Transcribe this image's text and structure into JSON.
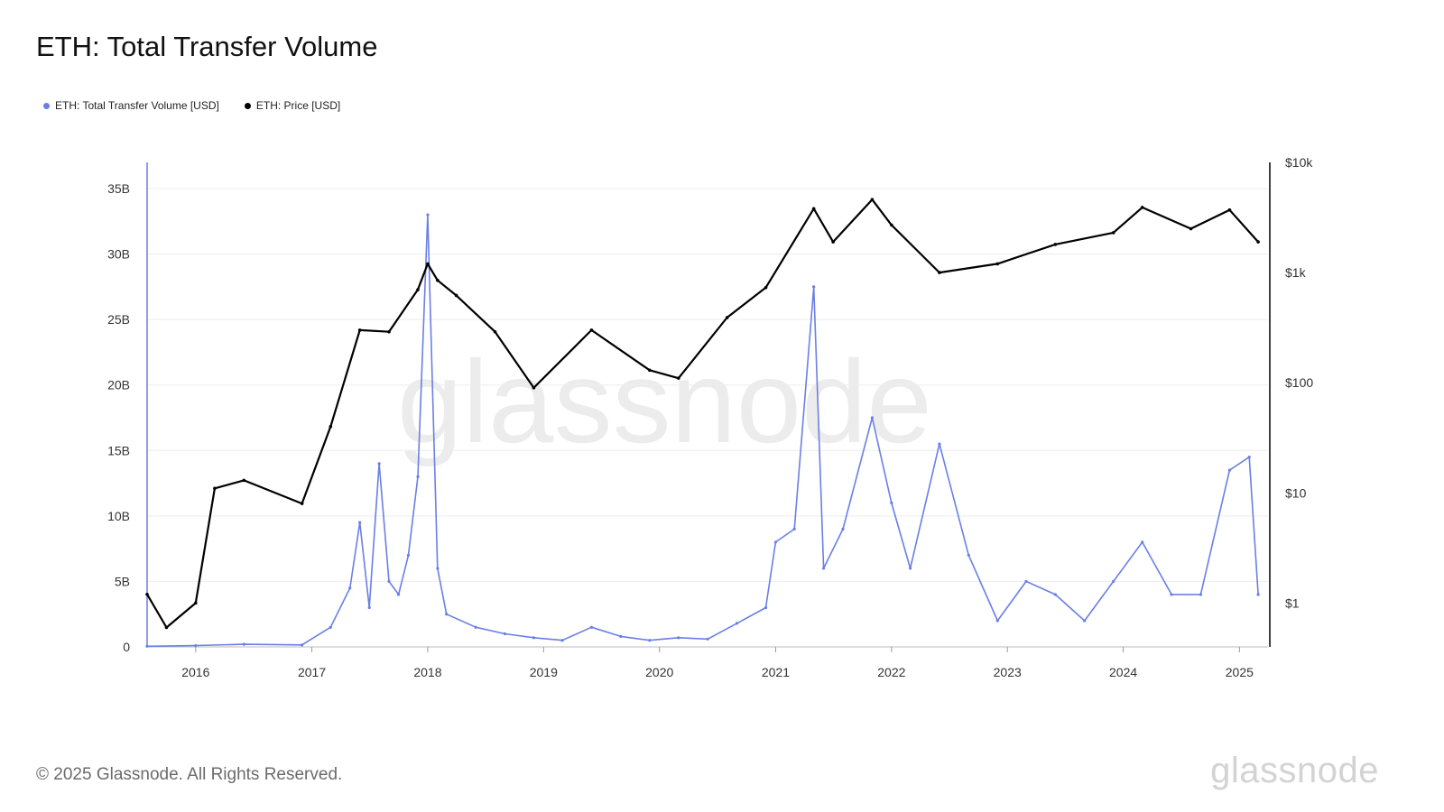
{
  "page": {
    "title": "ETH: Total Transfer Volume",
    "footer": "© 2025 Glassnode. All Rights Reserved.",
    "brand": "glassnode",
    "watermark": "glassnode"
  },
  "legend": [
    {
      "label": "ETH: Total Transfer Volume [USD]",
      "color": "#6a7fe6"
    },
    {
      "label": "ETH: Price [USD]",
      "color": "#000000"
    }
  ],
  "chart_data": {
    "type": "line",
    "title": "ETH: Total Transfer Volume",
    "x_axis": {
      "range": [
        "2015-08",
        "2025-04"
      ],
      "tick_labels": [
        "2016",
        "2017",
        "2018",
        "2019",
        "2020",
        "2021",
        "2022",
        "2023",
        "2024",
        "2025"
      ]
    },
    "y_left": {
      "range": [
        0,
        37000000000
      ],
      "ticks": [
        0,
        5000000000,
        10000000000,
        15000000000,
        20000000000,
        25000000000,
        30000000000,
        35000000000
      ],
      "tick_labels": [
        "0",
        "5B",
        "10B",
        "15B",
        "20B",
        "25B",
        "30B",
        "35B"
      ]
    },
    "y_right": {
      "scale": "log",
      "range": [
        0.4,
        10000
      ],
      "ticks": [
        1,
        10,
        100,
        1000,
        10000
      ],
      "tick_labels": [
        "$1",
        "$10",
        "$100",
        "$1k",
        "$10k"
      ]
    },
    "series": [
      {
        "name": "ETH: Total Transfer Volume [USD]",
        "color": "#6a7fe6",
        "axis": "left",
        "points": [
          [
            "2015-08",
            0.05
          ],
          [
            "2016-01",
            0.1
          ],
          [
            "2016-06",
            0.2
          ],
          [
            "2016-12",
            0.15
          ],
          [
            "2017-03",
            1.5
          ],
          [
            "2017-05",
            4.5
          ],
          [
            "2017-06",
            9.5
          ],
          [
            "2017-07",
            3
          ],
          [
            "2017-08",
            14
          ],
          [
            "2017-09",
            5
          ],
          [
            "2017-10",
            4
          ],
          [
            "2017-11",
            7
          ],
          [
            "2017-12",
            13
          ],
          [
            "2018-01",
            33
          ],
          [
            "2018-02",
            6
          ],
          [
            "2018-03",
            2.5
          ],
          [
            "2018-06",
            1.5
          ],
          [
            "2018-09",
            1
          ],
          [
            "2018-12",
            0.7
          ],
          [
            "2019-03",
            0.5
          ],
          [
            "2019-06",
            1.5
          ],
          [
            "2019-09",
            0.8
          ],
          [
            "2019-12",
            0.5
          ],
          [
            "2020-03",
            0.7
          ],
          [
            "2020-06",
            0.6
          ],
          [
            "2020-09",
            1.8
          ],
          [
            "2020-12",
            3
          ],
          [
            "2021-01",
            8
          ],
          [
            "2021-03",
            9
          ],
          [
            "2021-05",
            27.5
          ],
          [
            "2021-06",
            6
          ],
          [
            "2021-08",
            9
          ],
          [
            "2021-11",
            17.5
          ],
          [
            "2022-01",
            11
          ],
          [
            "2022-03",
            6
          ],
          [
            "2022-06",
            15.5
          ],
          [
            "2022-09",
            7
          ],
          [
            "2022-12",
            2
          ],
          [
            "2023-03",
            5
          ],
          [
            "2023-06",
            4
          ],
          [
            "2023-09",
            2
          ],
          [
            "2023-12",
            5
          ],
          [
            "2024-03",
            8
          ],
          [
            "2024-06",
            4
          ],
          [
            "2024-09",
            4
          ],
          [
            "2024-12",
            13.5
          ],
          [
            "2025-02",
            14.5
          ],
          [
            "2025-03",
            4
          ]
        ],
        "unit": "billion USD"
      },
      {
        "name": "ETH: Price [USD]",
        "color": "#000000",
        "axis": "right",
        "points": [
          [
            "2015-08",
            1.2
          ],
          [
            "2015-10",
            0.6
          ],
          [
            "2016-01",
            1.0
          ],
          [
            "2016-03",
            11
          ],
          [
            "2016-06",
            13
          ],
          [
            "2016-12",
            8
          ],
          [
            "2017-03",
            40
          ],
          [
            "2017-06",
            300
          ],
          [
            "2017-09",
            290
          ],
          [
            "2017-12",
            700
          ],
          [
            "2018-01",
            1200
          ],
          [
            "2018-02",
            850
          ],
          [
            "2018-04",
            620
          ],
          [
            "2018-08",
            290
          ],
          [
            "2018-12",
            90
          ],
          [
            "2019-06",
            300
          ],
          [
            "2019-12",
            130
          ],
          [
            "2020-03",
            110
          ],
          [
            "2020-08",
            390
          ],
          [
            "2020-12",
            730
          ],
          [
            "2021-05",
            3800
          ],
          [
            "2021-07",
            1900
          ],
          [
            "2021-11",
            4600
          ],
          [
            "2022-01",
            2700
          ],
          [
            "2022-06",
            1000
          ],
          [
            "2022-12",
            1200
          ],
          [
            "2023-06",
            1800
          ],
          [
            "2023-12",
            2300
          ],
          [
            "2024-03",
            3900
          ],
          [
            "2024-08",
            2500
          ],
          [
            "2024-12",
            3700
          ],
          [
            "2025-03",
            1900
          ]
        ]
      }
    ]
  }
}
